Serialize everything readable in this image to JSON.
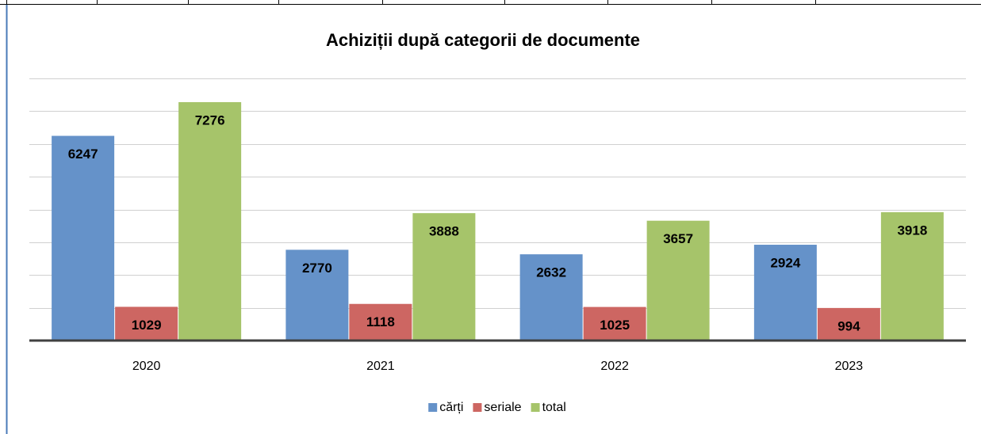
{
  "chart_data": {
    "type": "bar",
    "title": "Achiziții după categorii de documente",
    "categories": [
      "2020",
      "2021",
      "2022",
      "2023"
    ],
    "series": [
      {
        "name": "cărți",
        "color": "#6592c9",
        "values": [
          6247,
          2770,
          2632,
          2924
        ]
      },
      {
        "name": "seriale",
        "color": "#cd6662",
        "values": [
          1029,
          1118,
          1025,
          994
        ]
      },
      {
        "name": "total",
        "color": "#a6c46a",
        "values": [
          7276,
          3888,
          3657,
          3918
        ]
      }
    ],
    "ylim": [
      0,
      8000
    ],
    "yticks": [
      0,
      1000,
      2000,
      3000,
      4000,
      5000,
      6000,
      7000,
      8000
    ],
    "grid": true,
    "legend": "bottom"
  }
}
